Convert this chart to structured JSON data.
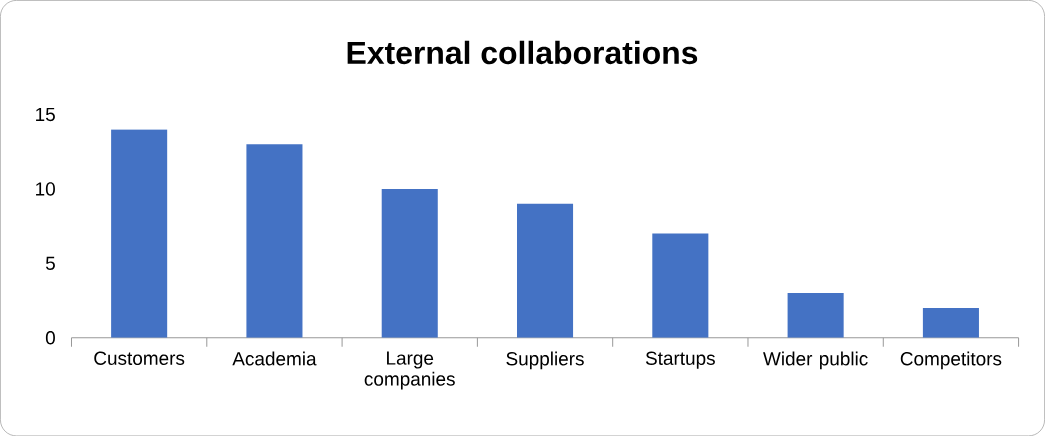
{
  "chart_data": {
    "type": "bar",
    "title": "External collaborations",
    "categories": [
      "Customers",
      "Academia",
      "Large companies",
      "Suppliers",
      "Startups",
      "Wider public",
      "Competitors"
    ],
    "values": [
      14,
      13,
      10,
      9,
      7,
      3,
      2
    ],
    "color": "#4472c4",
    "ylim": [
      0,
      15
    ],
    "yticks": [
      0,
      5,
      10,
      15
    ]
  }
}
